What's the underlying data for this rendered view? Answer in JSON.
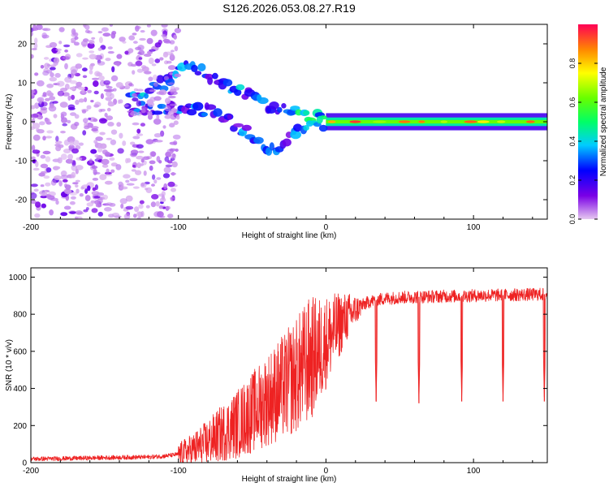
{
  "title": "S126.2026.053.08.27.R19",
  "chart_data": [
    {
      "type": "heatmap",
      "title": "S126.2026.053.08.27.R19",
      "xlabel": "Height of straight line (km)",
      "ylabel": "Frequency (Hz)",
      "xlim": [
        -200,
        150
      ],
      "ylim": [
        -25,
        25
      ],
      "xticks": [
        -200,
        -100,
        0,
        100
      ],
      "yticks": [
        20,
        10,
        0,
        -10,
        -20
      ],
      "colorbar": {
        "label": "Normalized spectral amplitude",
        "range": [
          0,
          1
        ],
        "ticks": [
          0.0,
          0.2,
          0.4,
          0.6,
          0.8
        ],
        "tick_labels": [
          "0.0",
          "0.2",
          "0.4",
          "0.6",
          "0.8"
        ]
      },
      "features": [
        {
          "name": "carrier",
          "x_range": [
            0,
            150
          ],
          "freq": 0,
          "amplitude": 0.8
        },
        {
          "name": "converging-upper-branch",
          "points": [
            [
              -135,
              5
            ],
            [
              -110,
              10
            ],
            [
              -95,
              14
            ],
            [
              -80,
              12
            ],
            [
              -60,
              8
            ],
            [
              -40,
              4
            ],
            [
              -20,
              2
            ],
            [
              0,
              1
            ]
          ],
          "amplitude": 0.35
        },
        {
          "name": "converging-lower-branch",
          "points": [
            [
              -130,
              4
            ],
            [
              -100,
              3
            ],
            [
              -80,
              3
            ],
            [
              -60,
              -1
            ],
            [
              -45,
              -5
            ],
            [
              -35,
              -8
            ],
            [
              -25,
              -4
            ],
            [
              0,
              0
            ]
          ],
          "amplitude": 0.3
        },
        {
          "name": "noise-cloud",
          "x_range": [
            -200,
            -100
          ],
          "freq_range": [
            -25,
            25
          ],
          "amplitude": 0.1
        }
      ]
    },
    {
      "type": "line",
      "xlabel": "Height of straight line (km)",
      "ylabel": "SNR (10 * v/v)",
      "xlim": [
        -200,
        150
      ],
      "ylim": [
        0,
        1050
      ],
      "xticks": [
        -200,
        -100,
        0,
        100
      ],
      "yticks": [
        0,
        200,
        400,
        600,
        800,
        1000
      ],
      "series": [
        {
          "name": "SNR",
          "color": "#ee2222",
          "x": [
            -200,
            -180,
            -160,
            -140,
            -120,
            -110,
            -100,
            -90,
            -80,
            -70,
            -60,
            -50,
            -40,
            -30,
            -20,
            -15,
            -10,
            -5,
            0,
            5,
            10,
            15,
            20,
            25,
            30,
            40,
            50,
            60,
            70,
            80,
            90,
            100,
            110,
            120,
            130,
            140,
            150
          ],
          "y": [
            20,
            22,
            25,
            28,
            30,
            35,
            45,
            70,
            110,
            160,
            210,
            270,
            340,
            400,
            470,
            520,
            560,
            600,
            650,
            700,
            750,
            790,
            820,
            850,
            870,
            885,
            890,
            893,
            895,
            897,
            898,
            900,
            902,
            903,
            905,
            906,
            908
          ],
          "dips": [
            [
              34,
              330
            ],
            [
              63,
              320
            ],
            [
              92,
              330
            ],
            [
              120,
              330
            ],
            [
              148,
              330
            ]
          ]
        }
      ]
    }
  ]
}
